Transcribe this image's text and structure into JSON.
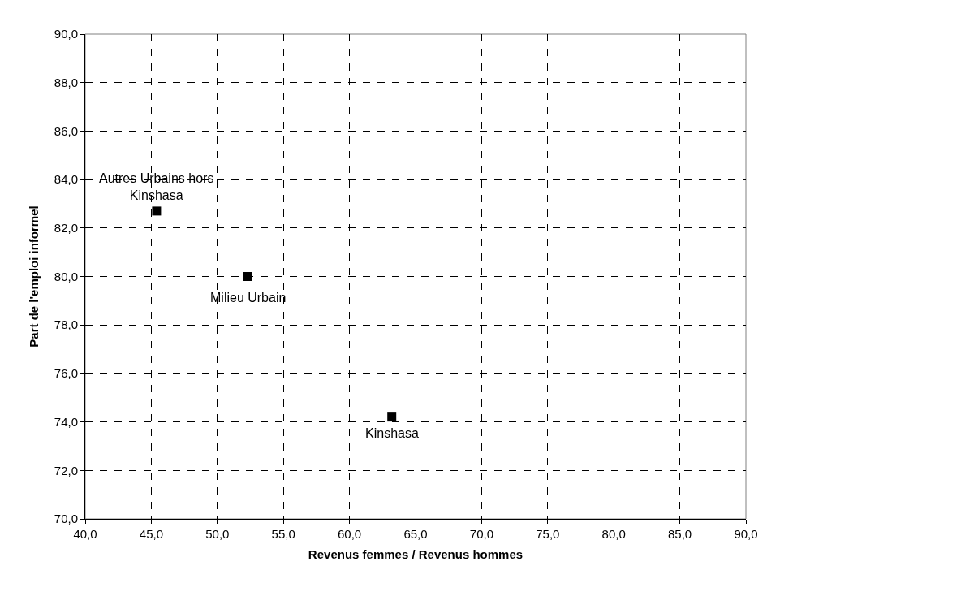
{
  "chart_data": {
    "type": "scatter",
    "xlabel": "Revenus femmes / Revenus hommes",
    "ylabel": "Part de l'emploi informel",
    "x": [
      45.4,
      52.3,
      63.2
    ],
    "series": [
      {
        "color": "#000000",
        "values": [
          82.7,
          80.0,
          74.2
        ]
      }
    ],
    "marker": "square",
    "grid": true,
    "xlim": [
      40,
      90
    ],
    "ylim": [
      70,
      90
    ],
    "xticks": [
      {
        "value": 40,
        "label": "40,0"
      },
      {
        "value": 45,
        "label": "45,0"
      },
      {
        "value": 50,
        "label": "50,0"
      },
      {
        "value": 55,
        "label": "55,0"
      },
      {
        "value": 60,
        "label": "60,0"
      },
      {
        "value": 65,
        "label": "65,0"
      },
      {
        "value": 70,
        "label": "70,0"
      },
      {
        "value": 75,
        "label": "75,0"
      },
      {
        "value": 80,
        "label": "80,0"
      },
      {
        "value": 85,
        "label": "85,0"
      },
      {
        "value": 90,
        "label": "90,0"
      }
    ],
    "yticks": [
      {
        "value": 70,
        "label": "70,0"
      },
      {
        "value": 72,
        "label": "72,0"
      },
      {
        "value": 74,
        "label": "74,0"
      },
      {
        "value": 76,
        "label": "76,0"
      },
      {
        "value": 78,
        "label": "78,0"
      },
      {
        "value": 80,
        "label": "80,0"
      },
      {
        "value": 82,
        "label": "82,0"
      },
      {
        "value": 84,
        "label": "84,0"
      },
      {
        "value": 86,
        "label": "86,0"
      },
      {
        "value": 88,
        "label": "88,0"
      },
      {
        "value": 90,
        "label": "90,0"
      }
    ],
    "annotations": [
      {
        "text": "Autres Urbains hors Kinshasa",
        "x": 45.4,
        "y": 82.7
      },
      {
        "text": "Milieu Urbain",
        "x": 52.3,
        "y": 80.0
      },
      {
        "text": "Kinshasa",
        "x": 63.2,
        "y": 74.2
      }
    ]
  }
}
